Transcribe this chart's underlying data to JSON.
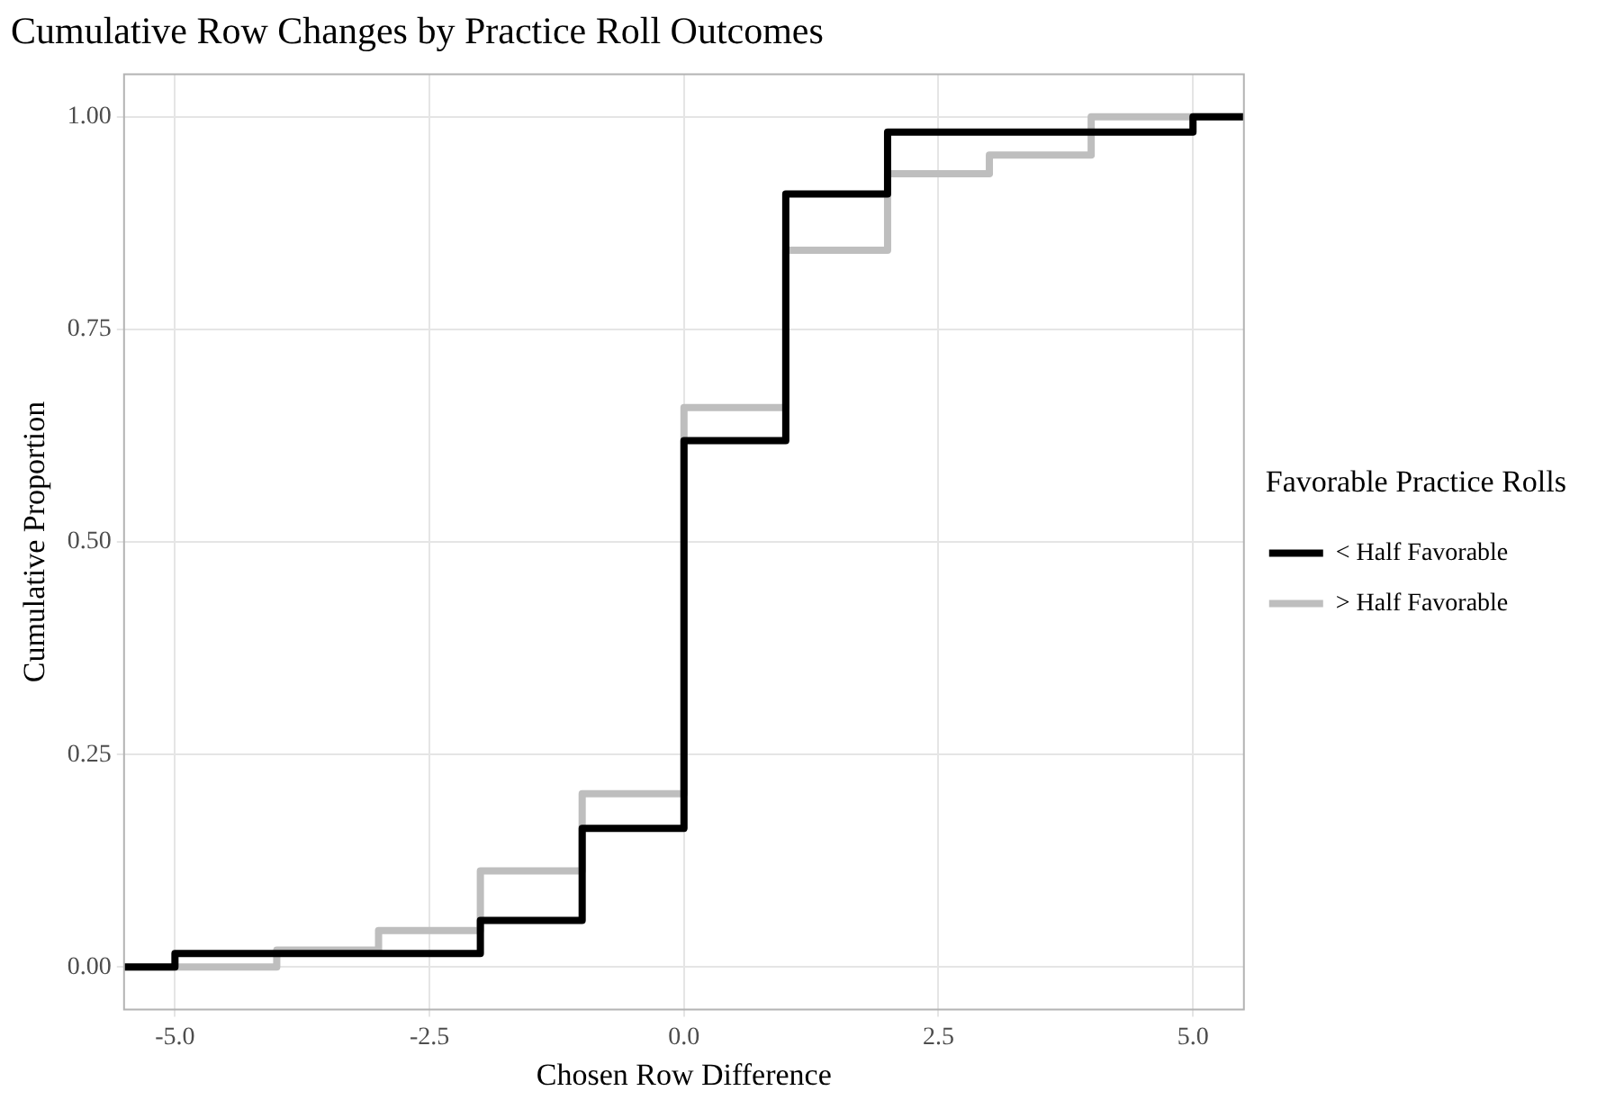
{
  "chart_data": {
    "type": "step",
    "title": "Cumulative Row Changes by Practice Roll Outcomes",
    "xlabel": "Chosen Row Difference",
    "ylabel": "Cumulative Proportion",
    "legend_title": "Favorable Practice Rolls",
    "series": [
      {
        "name": "< Half Favorable",
        "color": "#000000",
        "x": [
          -5.5,
          -5,
          -2,
          -1,
          0,
          1,
          2,
          5,
          5.5
        ],
        "values": [
          0,
          0.016,
          0.055,
          0.163,
          0.619,
          0.909,
          0.982,
          1,
          1
        ]
      },
      {
        "name": "> Half Favorable",
        "color": "#bebebe",
        "x": [
          -5.5,
          -4,
          -3,
          -2,
          -1,
          0,
          1,
          2,
          3,
          4,
          5.5
        ],
        "values": [
          0,
          0.02,
          0.043,
          0.113,
          0.204,
          0.658,
          0.843,
          0.933,
          0.955,
          1,
          1
        ]
      }
    ],
    "xlim": [
      -5.5,
      5.5
    ],
    "xticks": [
      {
        "value": -5,
        "label": "-5.0"
      },
      {
        "value": -2.5,
        "label": "-2.5"
      },
      {
        "value": 0,
        "label": "0.0"
      },
      {
        "value": 2.5,
        "label": "2.5"
      },
      {
        "value": 5,
        "label": "5.0"
      }
    ],
    "ylim": [
      -0.05,
      1.05
    ],
    "yticks": [
      {
        "value": 0,
        "label": "0.00"
      },
      {
        "value": 0.25,
        "label": "0.25"
      },
      {
        "value": 0.5,
        "label": "0.50"
      },
      {
        "value": 0.75,
        "label": "0.75"
      },
      {
        "value": 1,
        "label": "1.00"
      }
    ],
    "grid": true,
    "legend": "right",
    "marker": "none",
    "line_style": "solid"
  }
}
